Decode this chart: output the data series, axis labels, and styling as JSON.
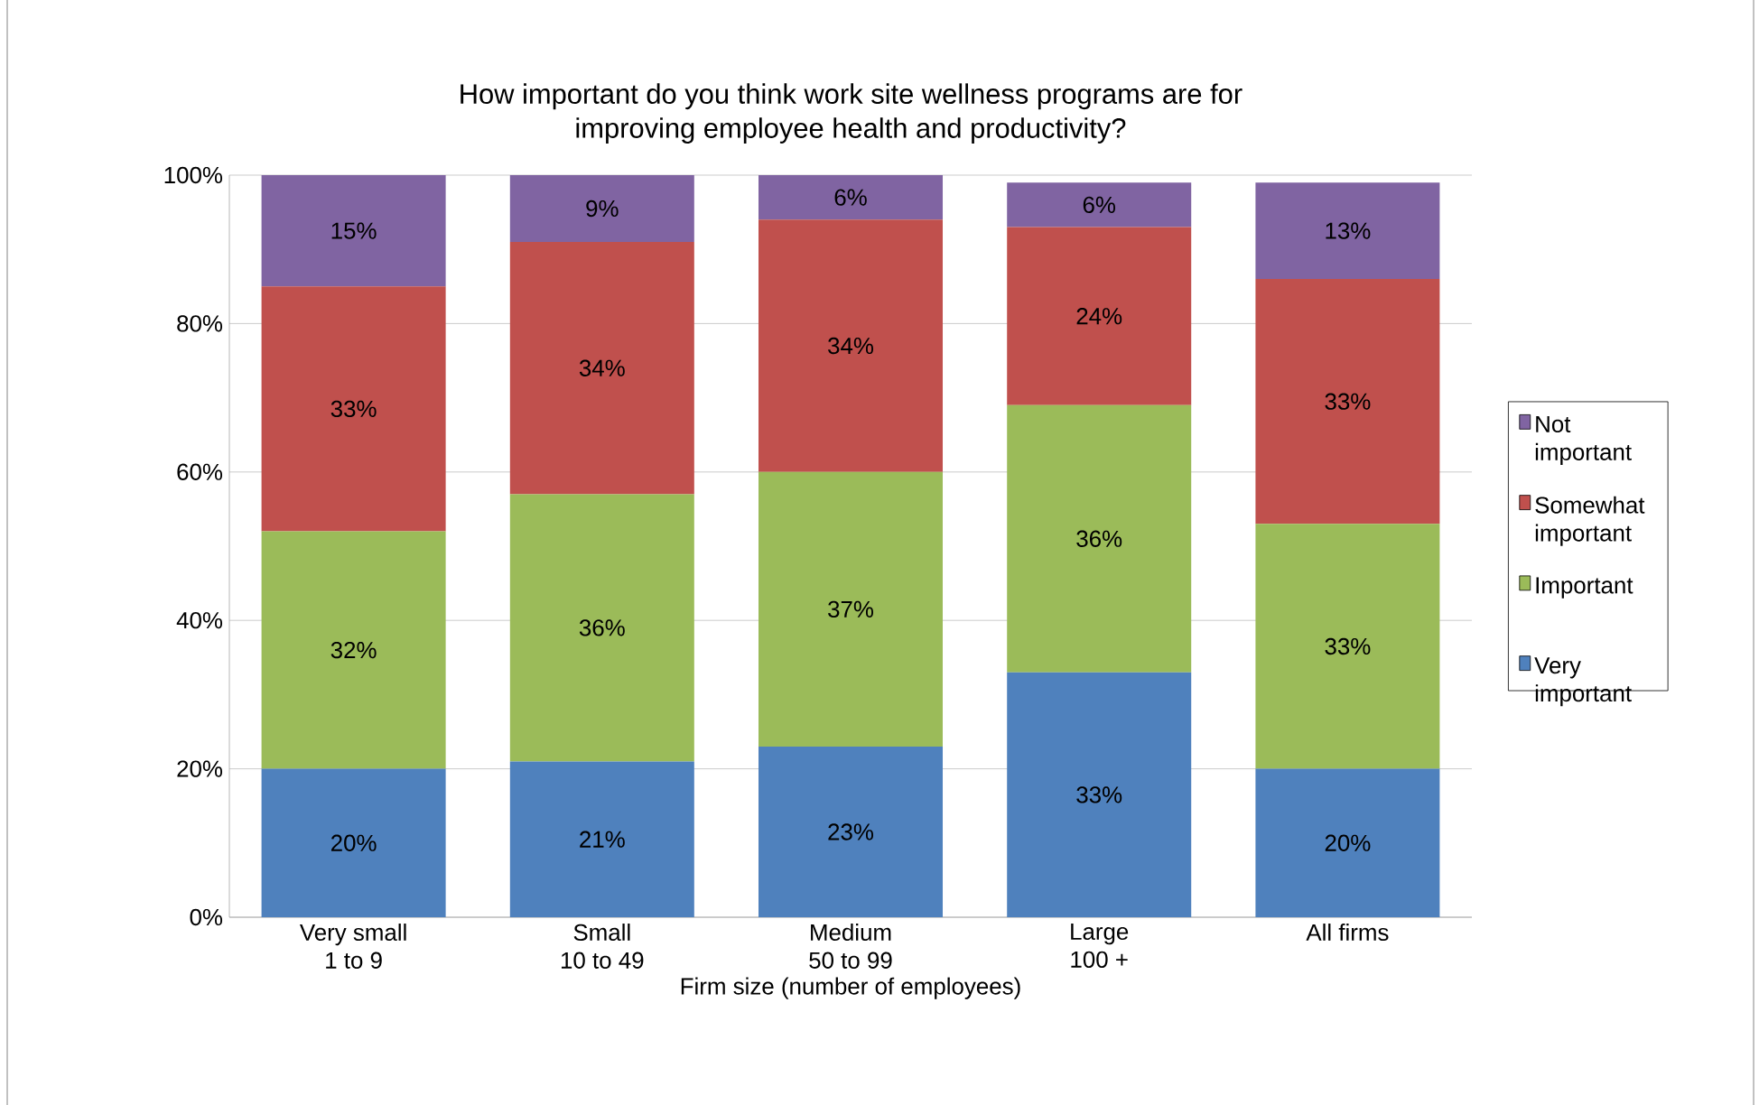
{
  "chart_data": {
    "type": "bar",
    "stacked": true,
    "title": "How important do you think work site wellness programs are for\nimproving employee health and productivity?",
    "xlabel": "Firm size (number of employees)",
    "categories": [
      "Very small\n1 to 9",
      "Small\n10 to 49",
      "Medium\n50 to 99",
      "Large\n100 +",
      "All firms"
    ],
    "series": [
      {
        "name": "Very important",
        "color": "#4f81bd",
        "values": [
          20,
          21,
          23,
          33,
          20
        ],
        "value_labels": [
          "20%",
          "21%",
          "23%",
          "33%",
          "20%"
        ]
      },
      {
        "name": "Important",
        "color": "#9bbb59",
        "values": [
          32,
          36,
          37,
          36,
          33
        ],
        "value_labels": [
          "32%",
          "36%",
          "37%",
          "36%",
          "33%"
        ]
      },
      {
        "name": "Somewhat important",
        "color": "#c0504d",
        "values": [
          33,
          34,
          34,
          24,
          33
        ],
        "value_labels": [
          "33%",
          "34%",
          "34%",
          "24%",
          "33%"
        ]
      },
      {
        "name": "Not important",
        "color": "#8064a2",
        "values": [
          15,
          9,
          6,
          6,
          13
        ],
        "value_labels": [
          "15%",
          "9%",
          "6%",
          "6%",
          "13%"
        ]
      }
    ],
    "ylim": [
      0,
      100
    ],
    "yticks": [
      {
        "value": 0,
        "label": "0%"
      },
      {
        "value": 20,
        "label": "20%"
      },
      {
        "value": 40,
        "label": "40%"
      },
      {
        "value": 60,
        "label": "60%"
      },
      {
        "value": 80,
        "label": "80%"
      },
      {
        "value": 100,
        "label": "100%"
      }
    ],
    "grid": "y",
    "legend": "right"
  }
}
